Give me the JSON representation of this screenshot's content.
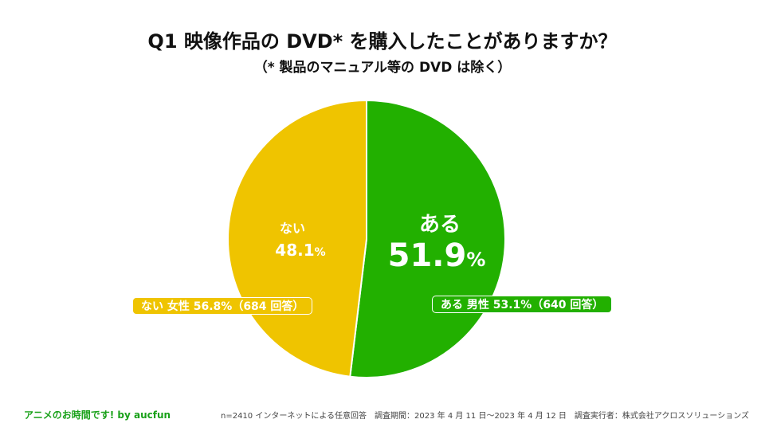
{
  "title": "Q1  映像作品の DVD* を購入したことがありますか？",
  "subtitle": "（* 製品のマニュアル等の DVD は除く）",
  "colors": {
    "yes": "#22b000",
    "no": "#efc400",
    "edge": "#ffffff"
  },
  "chart_data": {
    "type": "pie",
    "slices": [
      {
        "label": "ある",
        "value": 51.9,
        "value_text": "51.9",
        "unit": "%",
        "color": "#22b000",
        "detail": "ある 男性 53.1%（640 回答）"
      },
      {
        "label": "ない",
        "value": 48.1,
        "value_text": "48.1",
        "unit": "%",
        "color": "#efc400",
        "detail": "ない 女性 56.8%（684 回答）"
      }
    ]
  },
  "footer": {
    "brand": "アニメのお時間です! by aucfun",
    "note": "n=2410 インターネットによる任意回答　調査期間：2023 年 4 月 11 日〜2023 年 4 月 12 日　調査実行者：株式会社アクロスソリューションズ"
  }
}
